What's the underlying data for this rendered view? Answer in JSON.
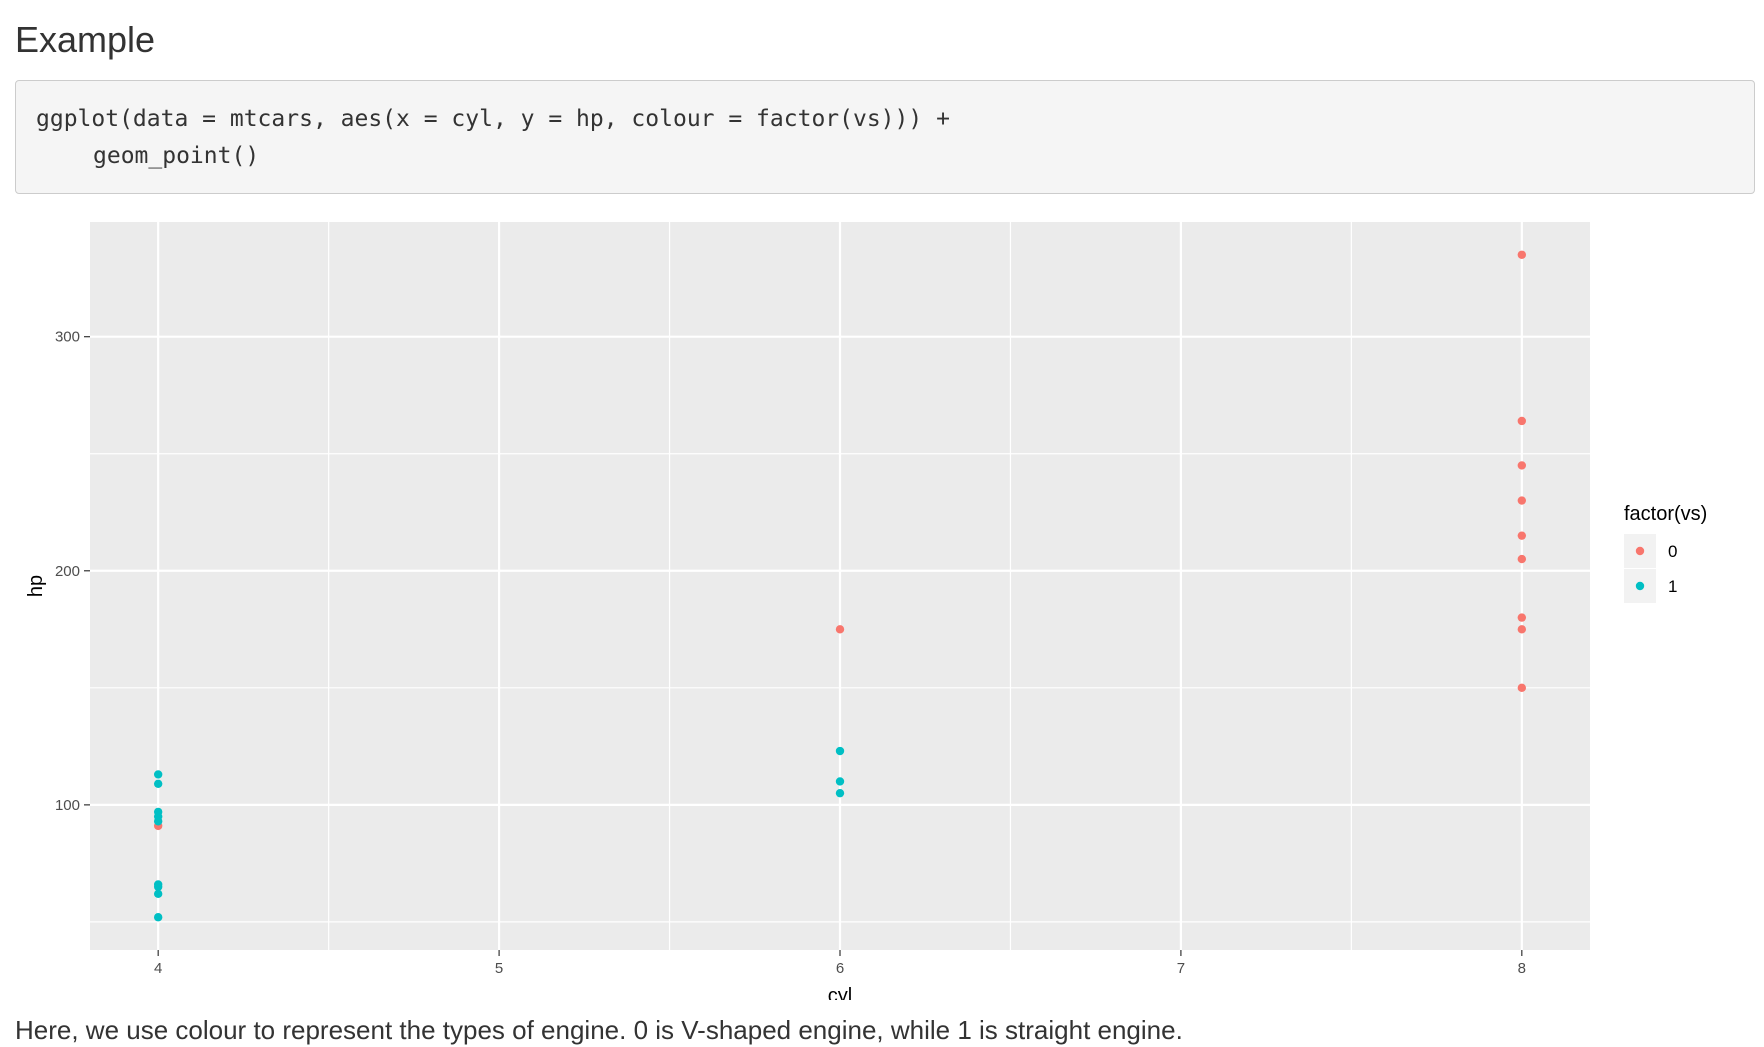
{
  "heading": "Example",
  "code": {
    "line1": "ggplot(data = mtcars, aes(x = cyl, y = hp, colour = factor(vs))) +",
    "line2": "geom_point()"
  },
  "caption": "Here, we use colour to represent the types of engine. 0 is V-shaped engine, while 1 is straight engine.",
  "colors": {
    "panel": "#ebebeb",
    "grid": "#ffffff",
    "series_0": "#F8766D",
    "series_1": "#00BFC4"
  },
  "chart_data": {
    "type": "scatter",
    "xlabel": "cyl",
    "ylabel": "hp",
    "xlim": [
      3.8,
      8.2
    ],
    "ylim": [
      38,
      349
    ],
    "x_ticks": [
      4,
      5,
      6,
      7,
      8
    ],
    "y_ticks": [
      100,
      200,
      300
    ],
    "grid": true,
    "legend": {
      "title": "factor(vs)",
      "position": "right"
    },
    "series": [
      {
        "name": "0",
        "points": [
          {
            "x": 4,
            "y": 91
          },
          {
            "x": 6,
            "y": 175
          },
          {
            "x": 8,
            "y": 335
          },
          {
            "x": 8,
            "y": 264
          },
          {
            "x": 8,
            "y": 245
          },
          {
            "x": 8,
            "y": 230
          },
          {
            "x": 8,
            "y": 215
          },
          {
            "x": 8,
            "y": 205
          },
          {
            "x": 8,
            "y": 180
          },
          {
            "x": 8,
            "y": 175
          },
          {
            "x": 8,
            "y": 150
          }
        ]
      },
      {
        "name": "1",
        "points": [
          {
            "x": 4,
            "y": 113
          },
          {
            "x": 4,
            "y": 109
          },
          {
            "x": 4,
            "y": 97
          },
          {
            "x": 4,
            "y": 95
          },
          {
            "x": 4,
            "y": 93
          },
          {
            "x": 4,
            "y": 66
          },
          {
            "x": 4,
            "y": 65
          },
          {
            "x": 4,
            "y": 62
          },
          {
            "x": 4,
            "y": 52
          },
          {
            "x": 6,
            "y": 123
          },
          {
            "x": 6,
            "y": 110
          },
          {
            "x": 6,
            "y": 105
          }
        ]
      }
    ]
  }
}
